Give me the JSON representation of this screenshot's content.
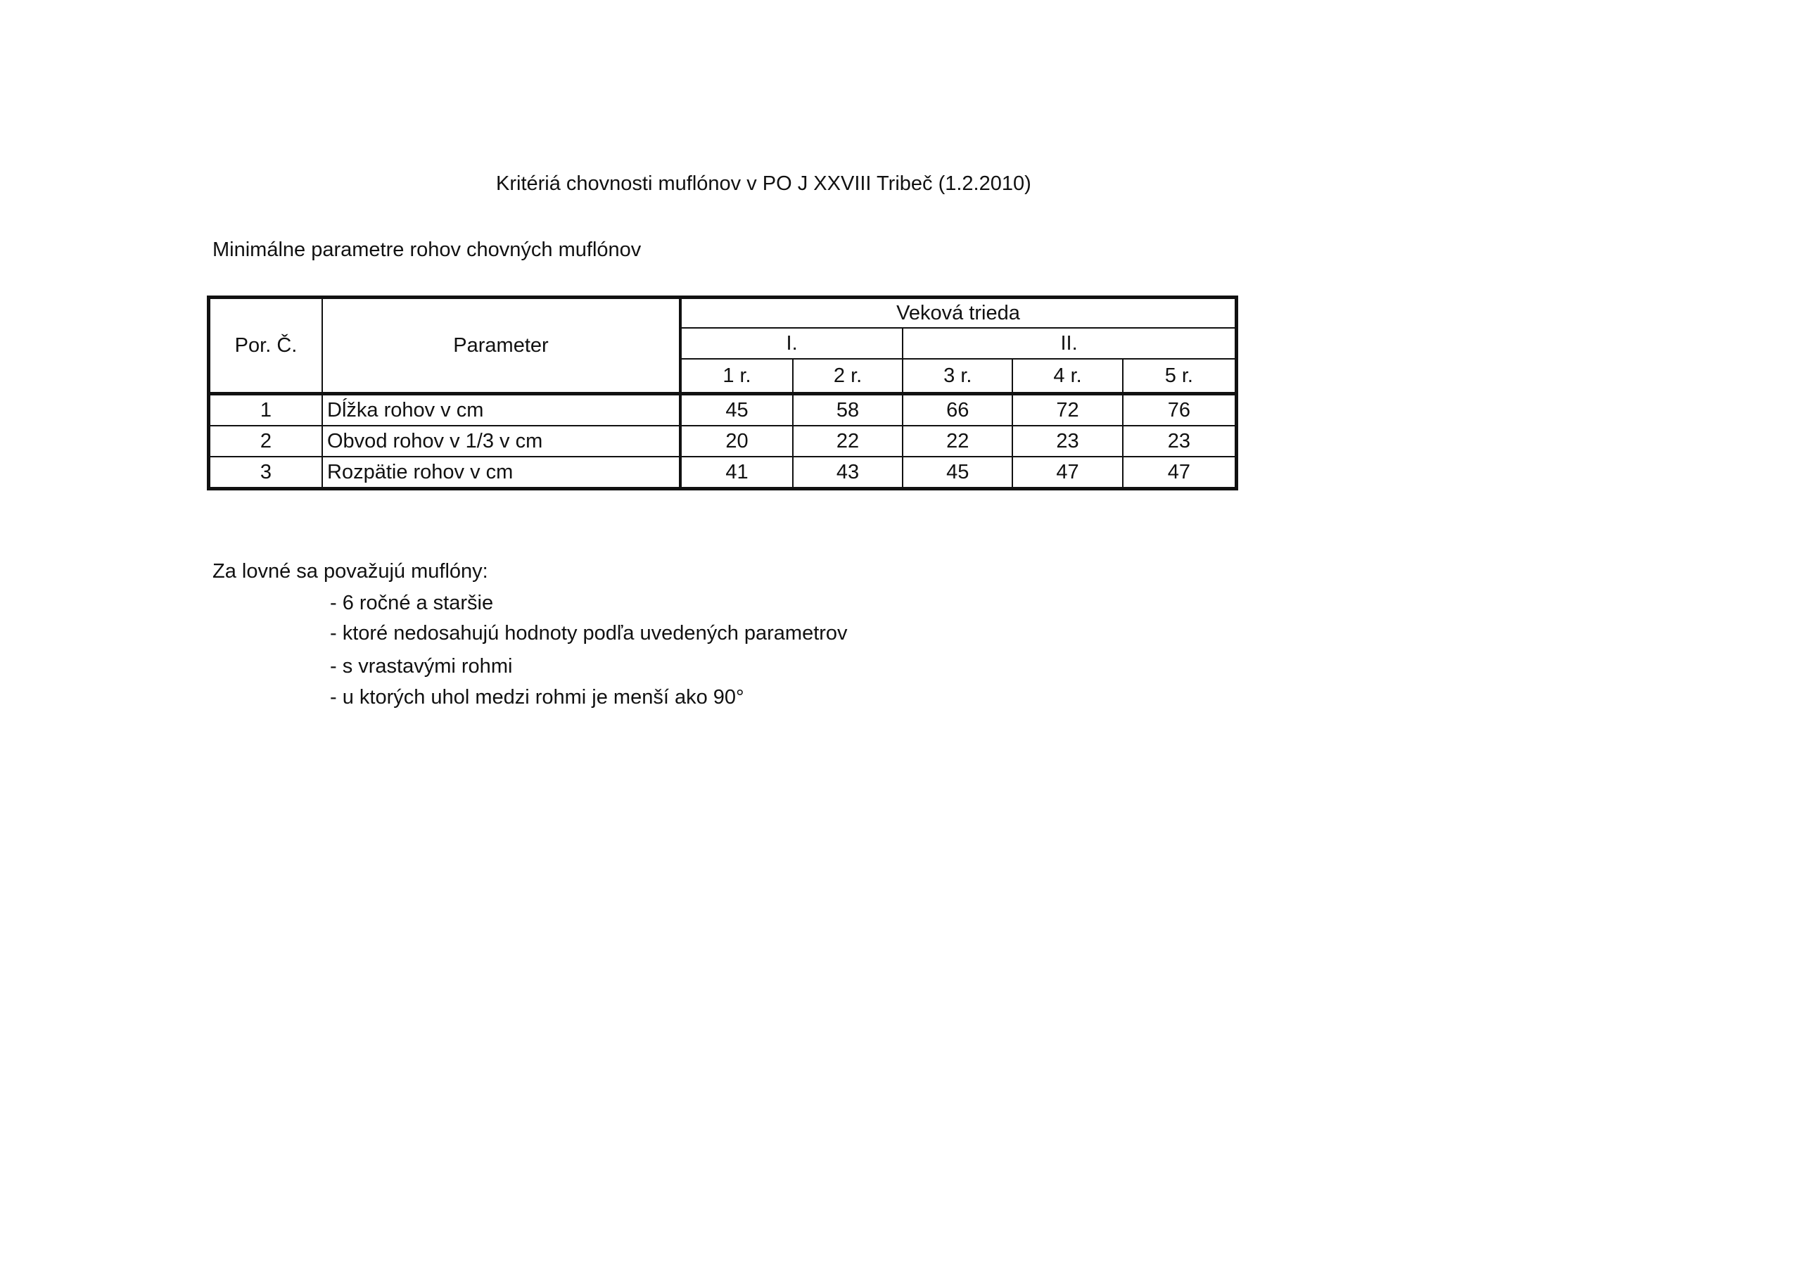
{
  "title": "Kritériá chovnosti muflónov v PO J XXVIII Tribeč (1.2.2010)",
  "subtitle": "Minimálne parametre rohov chovných muflónov",
  "table": {
    "col_por": "Por. Č.",
    "col_param": "Parameter",
    "group": "Veková trieda",
    "classes": [
      "I.",
      "II."
    ],
    "years": [
      "1 r.",
      "2 r.",
      "3 r.",
      "4 r.",
      "5 r."
    ],
    "rows": [
      {
        "no": "1",
        "param": "Dĺžka rohov v cm",
        "values": [
          "45",
          "58",
          "66",
          "72",
          "76"
        ]
      },
      {
        "no": "2",
        "param": "Obvod rohov v 1/3 v cm",
        "values": [
          "20",
          "22",
          "22",
          "23",
          "23"
        ]
      },
      {
        "no": "3",
        "param": "Rozpätie rohov v cm",
        "values": [
          "41",
          "43",
          "45",
          "47",
          "47"
        ]
      }
    ]
  },
  "notes": {
    "intro": "Za lovné sa považujú muflóny:",
    "items": [
      "- 6 ročné a staršie",
      "- ktoré nedosahujú hodnoty podľa uvedených parametrov",
      "- s vrastavými rohmi",
      "- u ktorých uhol medzi rohmi je menší ako 90°"
    ]
  }
}
